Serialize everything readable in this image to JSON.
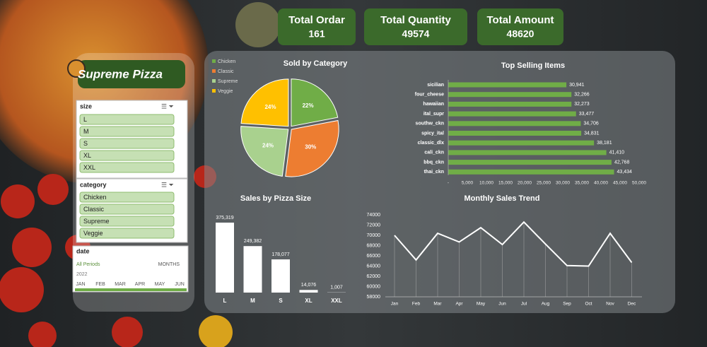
{
  "logo": "Supreme Pizza",
  "kpis": [
    {
      "label": "Total Ordar",
      "value": 161
    },
    {
      "label": "Total Quantity",
      "value": 49574
    },
    {
      "label": "Total Amount",
      "value": 48620
    }
  ],
  "slicers": {
    "size": {
      "title": "size",
      "items": [
        "L",
        "M",
        "S",
        "XL",
        "XXL"
      ]
    },
    "category": {
      "title": "category",
      "items": [
        "Chicken",
        "Classic",
        "Supreme",
        "Veggie"
      ]
    },
    "date": {
      "title": "date",
      "period": "All Periods",
      "level": "MONTHS",
      "year": "2022",
      "months": [
        "JAN",
        "FEB",
        "MAR",
        "APR",
        "MAY",
        "JUN"
      ]
    }
  },
  "chart_data": [
    {
      "type": "pie",
      "title": "Sold by Category",
      "categories": [
        "Chicken",
        "Classic",
        "Supreme",
        "Veggie"
      ],
      "values": [
        22,
        30,
        24,
        24
      ],
      "value_labels": [
        "22%",
        "30%",
        "24%",
        "24%"
      ],
      "colors": [
        "#70ad47",
        "#ed7d31",
        "#a9d18e",
        "#ffc000"
      ]
    },
    {
      "type": "bar",
      "orientation": "horizontal",
      "title": "Top Selling Items",
      "categories": [
        "sicilian",
        "four_cheese",
        "hawaiian",
        "ital_supr",
        "southw_ckn",
        "spicy_ital",
        "classic_dlx",
        "cali_ckn",
        "bbq_ckn",
        "thai_ckn"
      ],
      "values": [
        30941,
        32266,
        32273,
        33477,
        34706,
        34831,
        38181,
        41410,
        42768,
        43434
      ],
      "value_labels": [
        "30,941",
        "32,266",
        "32,273",
        "33,477",
        "34,706",
        "34,831",
        "38,181",
        "41,410",
        "42,768",
        "43,434"
      ],
      "color": "#70ad47",
      "xlim": [
        0,
        50000
      ],
      "xticks": [
        {
          "value": 0,
          "label": "-"
        },
        {
          "value": 5000,
          "label": "5,000"
        },
        {
          "value": 10000,
          "label": "10,000"
        },
        {
          "value": 15000,
          "label": "15,000"
        },
        {
          "value": 20000,
          "label": "20,000"
        },
        {
          "value": 25000,
          "label": "25,000"
        },
        {
          "value": 30000,
          "label": "30,000"
        },
        {
          "value": 35000,
          "label": "35,000"
        },
        {
          "value": 40000,
          "label": "40,000"
        },
        {
          "value": 45000,
          "label": "45,000"
        },
        {
          "value": 50000,
          "label": "50,000"
        }
      ]
    },
    {
      "type": "bar",
      "orientation": "vertical",
      "title": "Sales by Pizza Size",
      "categories": [
        "L",
        "M",
        "S",
        "XL",
        "XXL"
      ],
      "values": [
        375319,
        249382,
        178077,
        14076,
        1007
      ],
      "value_labels": [
        "375,319",
        "249,382",
        "178,077",
        "14,076",
        "1,007"
      ],
      "color": "#ffffff"
    },
    {
      "type": "line",
      "title": "Monthly Sales Trend",
      "categories": [
        "Jan",
        "Feb",
        "Mar",
        "Apr",
        "May",
        "Jun",
        "Jul",
        "Aug",
        "Sep",
        "Oct",
        "Nov",
        "Dec"
      ],
      "values": [
        70000,
        65200,
        70400,
        68700,
        71500,
        68200,
        72600,
        68300,
        64100,
        64000,
        70400,
        64700
      ],
      "color": "#ffffff",
      "ylim": [
        58000,
        74000
      ],
      "yticks": [
        58000,
        60000,
        62000,
        64000,
        66000,
        68000,
        70000,
        72000,
        74000
      ]
    }
  ]
}
